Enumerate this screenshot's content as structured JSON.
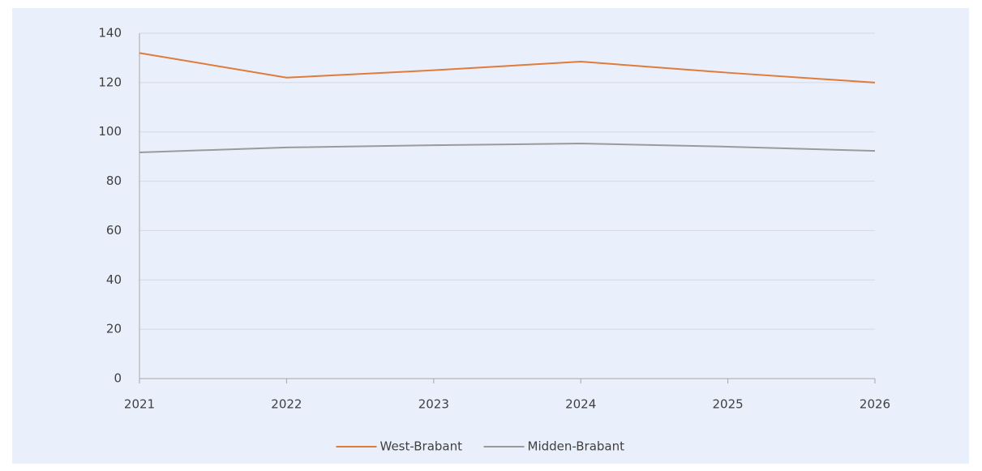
{
  "chart_data": {
    "type": "line",
    "x": [
      2021,
      2022,
      2023,
      2024,
      2025,
      2026
    ],
    "xlim": [
      2021,
      2026
    ],
    "xticks": [
      2021,
      2022,
      2023,
      2024,
      2025,
      2026
    ],
    "ylim": [
      0,
      140
    ],
    "yticks": [
      0,
      20,
      40,
      60,
      80,
      100,
      120,
      140
    ],
    "grid": true,
    "legend": "bottom",
    "series": [
      {
        "name": "West-Brabant",
        "color": "#e07b39",
        "values": [
          132,
          122,
          125,
          128.5,
          124,
          120
        ]
      },
      {
        "name": "Midden-Brabant",
        "color": "#9a9a9a",
        "values": [
          91.7,
          93.7,
          94.6,
          95.3,
          94,
          92.3
        ]
      }
    ]
  }
}
